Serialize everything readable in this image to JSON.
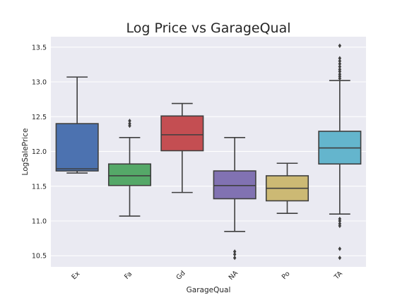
{
  "chart_data": {
    "type": "box",
    "title": "Log Price vs GarageQual",
    "xlabel": "GarageQual",
    "ylabel": "LogSalePrice",
    "ylim": [
      10.34,
      13.65
    ],
    "yticks": [
      "10.5",
      "11.0",
      "11.5",
      "12.0",
      "12.5",
      "13.0",
      "13.5"
    ],
    "grid": true,
    "categories": [
      "Ex",
      "Fa",
      "Gd",
      "NA",
      "Po",
      "TA"
    ],
    "boxes": [
      {
        "category": "Ex",
        "color": "#4c72b0",
        "whislo": 11.69,
        "q1": 11.72,
        "med": 11.75,
        "q3": 12.4,
        "whishi": 13.07,
        "fliers": []
      },
      {
        "category": "Fa",
        "color": "#55a868",
        "whislo": 11.07,
        "q1": 11.51,
        "med": 11.65,
        "q3": 11.82,
        "whishi": 12.2,
        "fliers": [
          12.37,
          12.4,
          12.44
        ]
      },
      {
        "category": "Gd",
        "color": "#c44e52",
        "whislo": 11.41,
        "q1": 12.01,
        "med": 12.24,
        "q3": 12.51,
        "whishi": 12.69,
        "fliers": []
      },
      {
        "category": "NA",
        "color": "#8172b2",
        "whislo": 10.85,
        "q1": 11.32,
        "med": 11.51,
        "q3": 11.72,
        "whishi": 12.2,
        "fliers": [
          10.47,
          10.52,
          10.56
        ]
      },
      {
        "category": "Po",
        "color": "#ccb974",
        "whislo": 11.11,
        "q1": 11.29,
        "med": 11.47,
        "q3": 11.65,
        "whishi": 11.83,
        "fliers": []
      },
      {
        "category": "TA",
        "color": "#64b5cd",
        "whislo": 11.1,
        "q1": 11.82,
        "med": 12.05,
        "q3": 12.29,
        "whishi": 13.02,
        "fliers": [
          10.47,
          10.6,
          10.93,
          10.96,
          11.0,
          11.03,
          13.05,
          13.08,
          13.11,
          13.15,
          13.18,
          13.22,
          13.26,
          13.3,
          13.34,
          13.52
        ]
      }
    ]
  }
}
